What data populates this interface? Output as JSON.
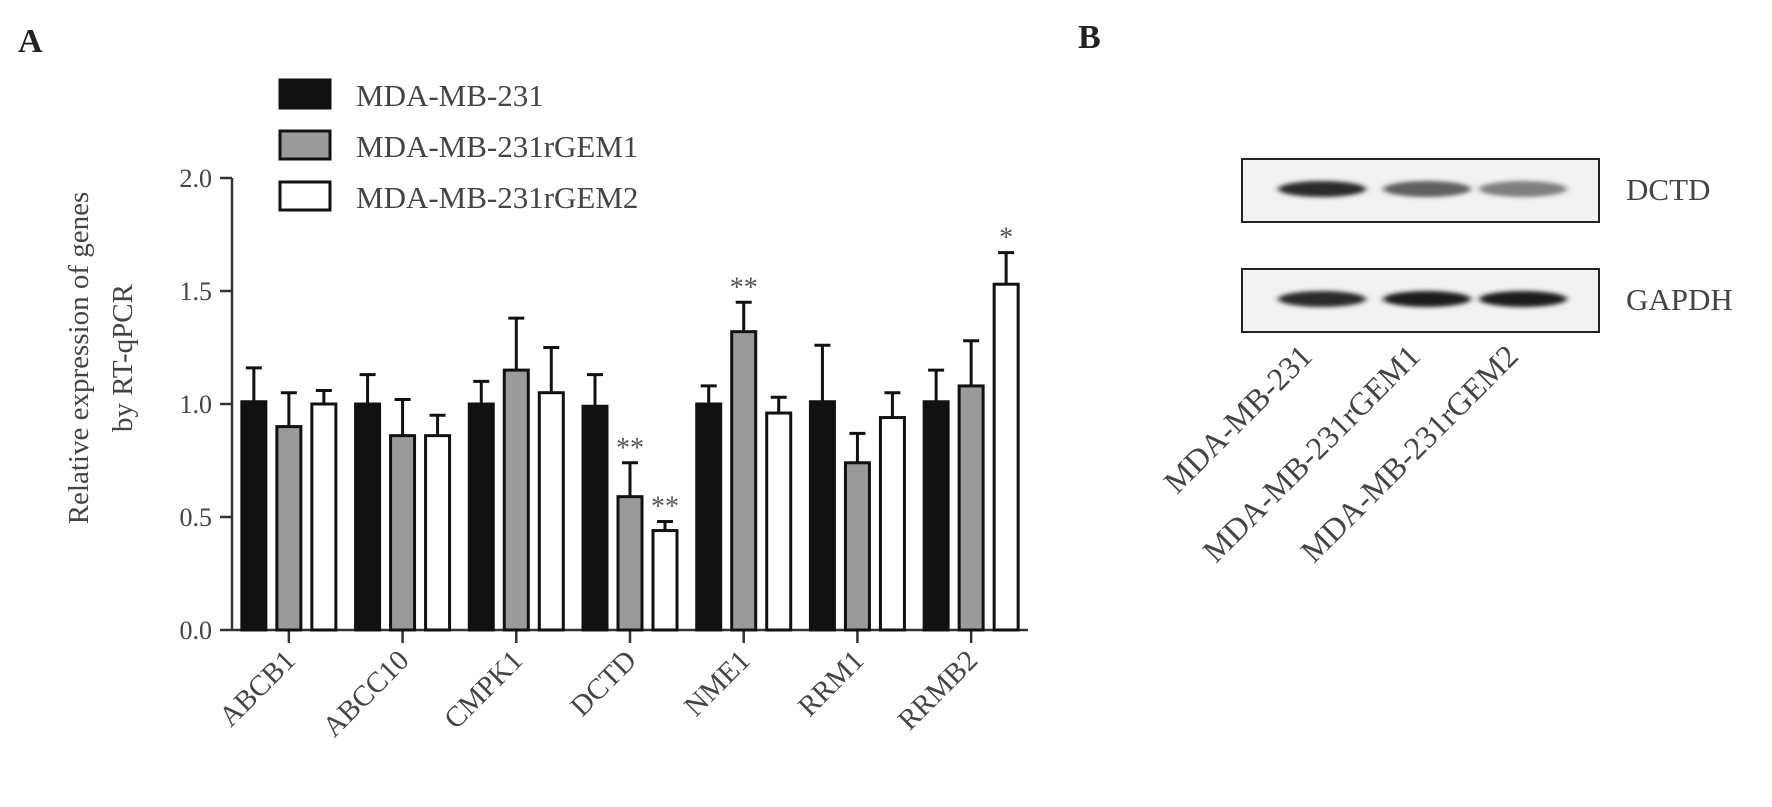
{
  "panels": {
    "a_label": "A",
    "b_label": "B"
  },
  "chart_data": {
    "type": "bar",
    "ylabel_line1": "Relative expression of genes",
    "ylabel_line2": "by  RT-qPCR",
    "ylim": [
      0,
      2.0
    ],
    "yticks": [
      "0.0",
      "0.5",
      "1.0",
      "1.5",
      "2.0"
    ],
    "categories": [
      "ABCB1",
      "ABCC10",
      "CMPK1",
      "DCTD",
      "NME1",
      "RRM1",
      "RRMB2"
    ],
    "series": [
      {
        "name": "MDA-MB-231",
        "color": "#111111",
        "values": [
          1.01,
          1.0,
          1.0,
          0.99,
          1.0,
          1.01,
          1.01
        ],
        "errors": [
          0.15,
          0.13,
          0.1,
          0.14,
          0.08,
          0.25,
          0.14
        ],
        "sig": [
          "",
          "",
          "",
          "",
          "",
          "",
          ""
        ]
      },
      {
        "name": "MDA-MB-231rGEM1",
        "color": "#9a9a9a",
        "values": [
          0.9,
          0.86,
          1.15,
          0.59,
          1.32,
          0.74,
          1.08
        ],
        "errors": [
          0.15,
          0.16,
          0.23,
          0.15,
          0.13,
          0.13,
          0.2
        ],
        "sig": [
          "",
          "",
          "",
          "**",
          "**",
          "",
          ""
        ]
      },
      {
        "name": "MDA-MB-231rGEM2",
        "color": "#ffffff",
        "values": [
          1.0,
          0.86,
          1.05,
          0.44,
          0.96,
          0.94,
          1.53
        ],
        "errors": [
          0.06,
          0.09,
          0.2,
          0.04,
          0.07,
          0.11,
          0.14
        ],
        "sig": [
          "",
          "",
          "",
          "**",
          "",
          "",
          "*"
        ]
      }
    ],
    "legend_position": "top-left"
  },
  "western_blot": {
    "bands": [
      {
        "label": "DCTD",
        "intensities": [
          0.95,
          0.7,
          0.55
        ]
      },
      {
        "label": "GAPDH",
        "intensities": [
          0.95,
          1.0,
          1.0
        ]
      }
    ],
    "lanes": [
      "MDA-MB-231",
      "MDA-MB-231rGEM1",
      "MDA-MB-231rGEM2"
    ]
  }
}
